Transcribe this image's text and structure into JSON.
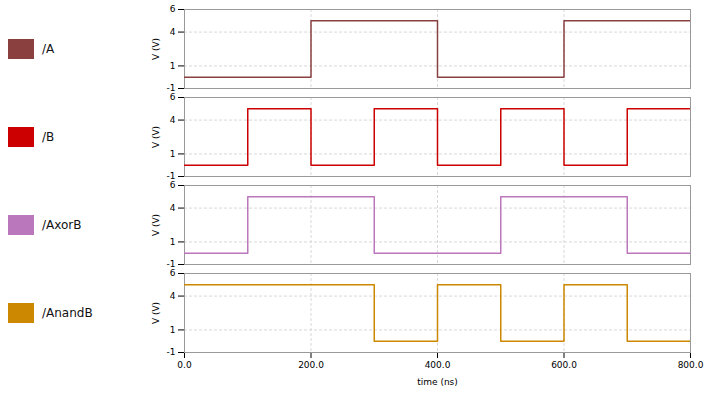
{
  "chart_data": {
    "type": "step",
    "xlabel": "time (ns)",
    "ylabel": "V (V)",
    "xlim": [
      0,
      800
    ],
    "ylim": [
      -1,
      6
    ],
    "xticks": [
      {
        "value": 0,
        "label": "0.0"
      },
      {
        "value": 200,
        "label": "200.0"
      },
      {
        "value": 400,
        "label": "400.0"
      },
      {
        "value": 600,
        "label": "600.0"
      },
      {
        "value": 800,
        "label": "800.0"
      }
    ],
    "yticks": [
      6,
      4,
      1,
      -1
    ],
    "grid": true,
    "series": [
      {
        "name": "/A",
        "color": "#8B4040",
        "x": [
          0,
          200,
          400,
          600,
          800
        ],
        "values": [
          0,
          5,
          0,
          5,
          5
        ]
      },
      {
        "name": "/B",
        "color": "#cc0000",
        "x": [
          0,
          100,
          200,
          300,
          400,
          500,
          600,
          700,
          800
        ],
        "values": [
          0,
          5,
          0,
          5,
          0,
          5,
          0,
          5,
          5
        ]
      },
      {
        "name": "/AxorB",
        "color": "#bb77bb",
        "x": [
          0,
          100,
          200,
          300,
          400,
          500,
          600,
          700,
          800
        ],
        "values": [
          0,
          5,
          5,
          0,
          0,
          5,
          5,
          0,
          0
        ]
      },
      {
        "name": "/AnandB",
        "color": "#cc8800",
        "x": [
          0,
          300,
          400,
          500,
          600,
          700,
          800
        ],
        "values": [
          5,
          0,
          5,
          0,
          5,
          0,
          0
        ]
      }
    ]
  }
}
